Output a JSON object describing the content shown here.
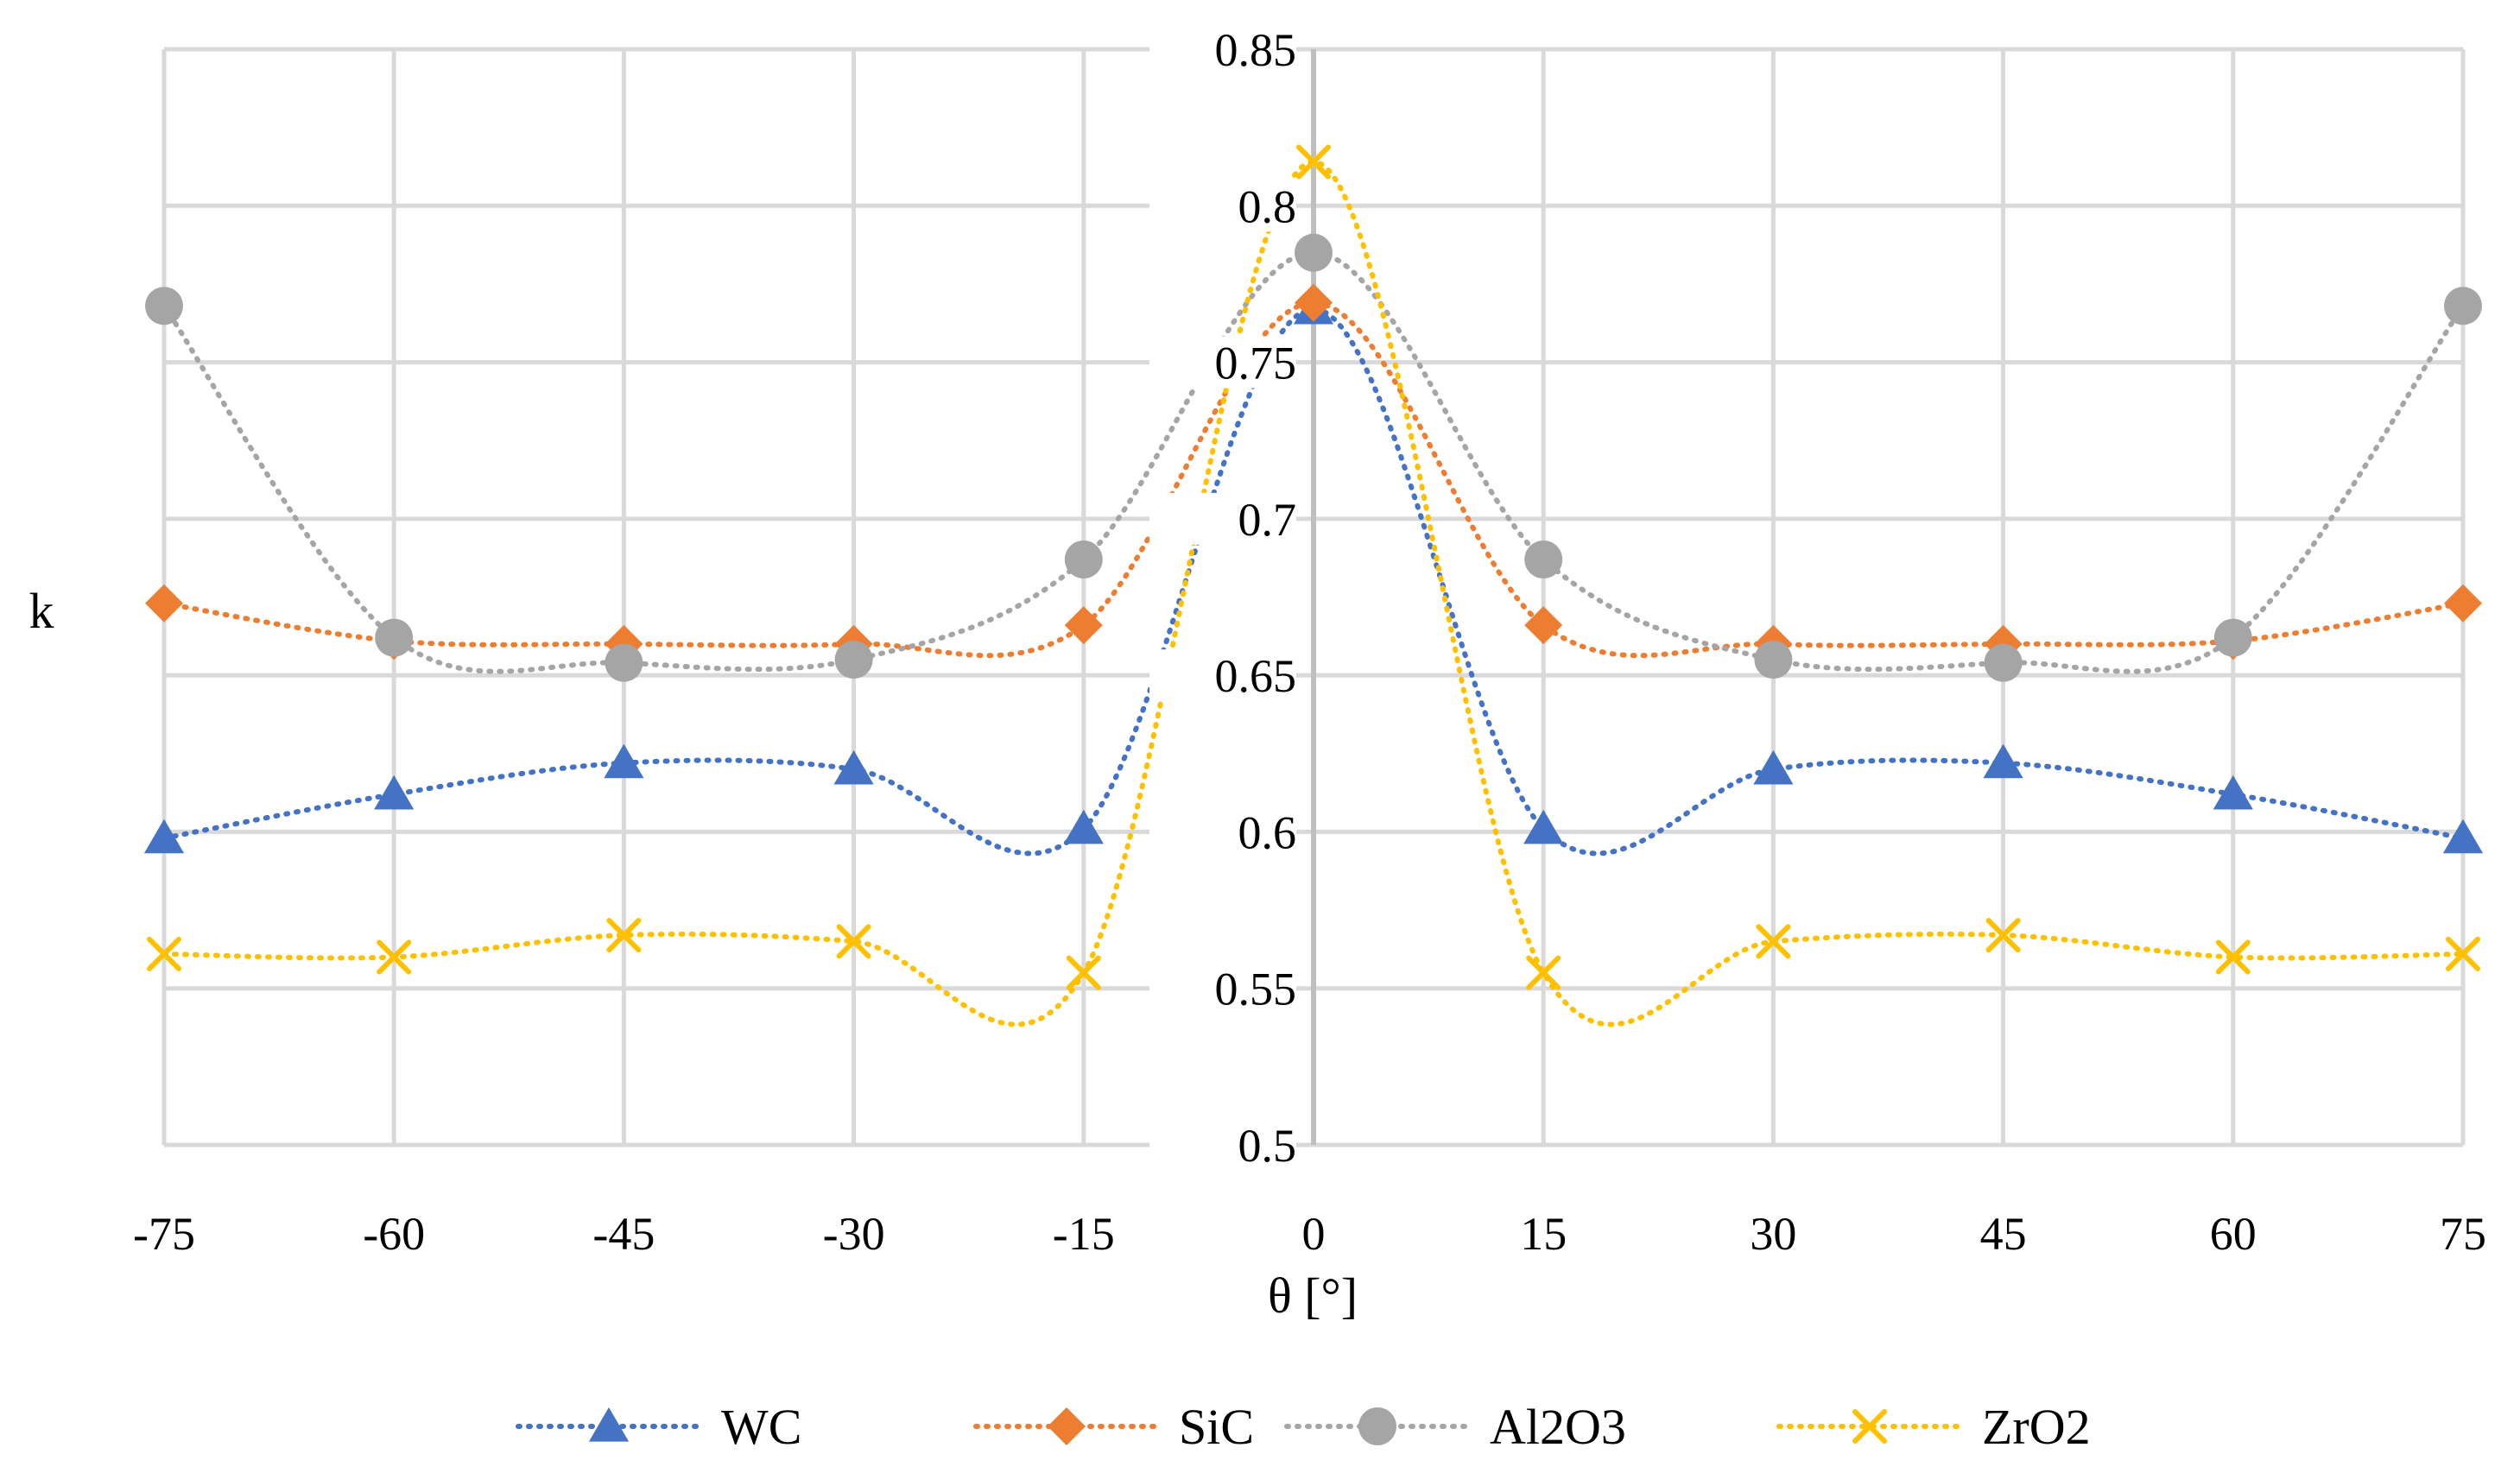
{
  "chart_data": {
    "type": "line",
    "title": "",
    "xlabel": "θ [°]",
    "ylabel": "k",
    "x": [
      -75,
      -60,
      -45,
      -30,
      -15,
      0,
      15,
      30,
      45,
      60,
      75
    ],
    "x_tick_labels": [
      "-75",
      "-60",
      "-45",
      "-30",
      "-15",
      "0",
      "15",
      "30",
      "45",
      "60",
      "75"
    ],
    "ylim": [
      0.5,
      0.85
    ],
    "y_ticks": [
      0.5,
      0.55,
      0.6,
      0.65,
      0.7,
      0.75,
      0.8,
      0.85
    ],
    "y_tick_labels": [
      "0.5",
      "0.55",
      "0.6",
      "0.65",
      "0.7",
      "0.75",
      "0.8",
      "0.85"
    ],
    "grid": true,
    "legend_position": "bottom",
    "line_style": "dotted-smooth",
    "series": [
      {
        "name": "WC",
        "color": "#4472C4",
        "marker": "triangle",
        "values": [
          0.598,
          0.612,
          0.622,
          0.62,
          0.601,
          0.767,
          0.601,
          0.62,
          0.622,
          0.612,
          0.598
        ]
      },
      {
        "name": "SiC",
        "color": "#ED7D31",
        "marker": "diamond",
        "values": [
          0.673,
          0.661,
          0.66,
          0.66,
          0.666,
          0.769,
          0.666,
          0.66,
          0.66,
          0.661,
          0.673
        ]
      },
      {
        "name": "Al2O3",
        "color": "#A5A5A5",
        "marker": "circle",
        "values": [
          0.768,
          0.662,
          0.654,
          0.655,
          0.687,
          0.785,
          0.687,
          0.655,
          0.654,
          0.662,
          0.768
        ]
      },
      {
        "name": "ZrO2",
        "color": "#FFC000",
        "marker": "x",
        "values": [
          0.561,
          0.56,
          0.567,
          0.565,
          0.555,
          0.814,
          0.555,
          0.565,
          0.567,
          0.56,
          0.561
        ]
      }
    ]
  }
}
